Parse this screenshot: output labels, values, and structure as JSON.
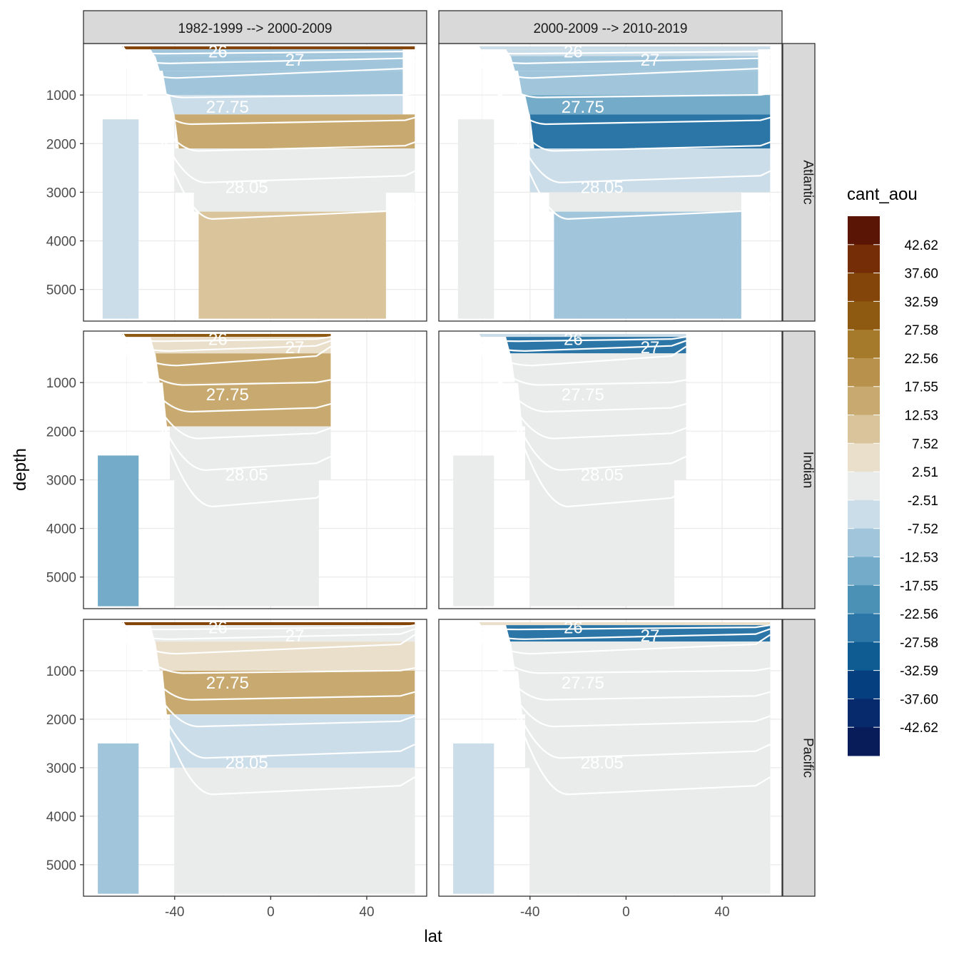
{
  "chart_data": {
    "type": "heatmap",
    "subtype": "faceted filled-contour depth sections with isopycnal contour lines",
    "xlabel": "lat",
    "ylabel": "depth",
    "xlim": [
      -75,
      62
    ],
    "ylim": [
      0,
      5650
    ],
    "y_reversed": true,
    "x_ticks": [
      -40,
      0,
      40
    ],
    "x_tick_labels": [
      "-40",
      "0",
      "40"
    ],
    "y_ticks": [
      1000,
      2000,
      3000,
      4000,
      5000
    ],
    "y_tick_labels": [
      "1000",
      "2000",
      "3000",
      "4000",
      "5000"
    ],
    "columns": [
      "1982-1999 --> 2000-2009",
      "2000-2009 --> 2010-2019"
    ],
    "rows": [
      "Atlantic",
      "Indian",
      "Pacific"
    ],
    "legend": {
      "title": "cant_aou",
      "labels": [
        "42.62",
        "37.60",
        "32.59",
        "27.58",
        "22.56",
        "17.55",
        "12.53",
        "7.52",
        "2.51",
        "-2.51",
        "-7.52",
        "-12.53",
        "-17.55",
        "-22.56",
        "-27.58",
        "-32.59",
        "-37.60",
        "-42.62"
      ],
      "colors": [
        "#5a1505",
        "#742d07",
        "#84450a",
        "#8e5a12",
        "#a67a2b",
        "#b8924c",
        "#c8aa71",
        "#d9c49b",
        "#e9dfcb",
        "#e9ecea",
        "#cadde9",
        "#a1c6dc",
        "#73abc9",
        "#4b91b5",
        "#2b76a6",
        "#0f5c93",
        "#053f80",
        "#072a6c",
        "#081c5a"
      ]
    },
    "contour_levels": [
      "26",
      "27",
      "27.75",
      "28.05"
    ],
    "facet_max_lat": {
      "Atlantic": 62,
      "Indian": 25,
      "Pacific": 60
    },
    "panels": [
      {
        "basin": "Atlantic",
        "period": "1982-1999 --> 2000-2009",
        "layers": [
          {
            "lat": [
              -62,
              60
            ],
            "depth": [
              0,
              60
            ],
            "value": 35
          },
          {
            "lat": [
              -50,
              55
            ],
            "depth": [
              60,
              200
            ],
            "value": -15
          },
          {
            "lat": [
              -48,
              55
            ],
            "depth": [
              200,
              500
            ],
            "value": -12
          },
          {
            "lat": [
              -45,
              55
            ],
            "depth": [
              500,
              1000
            ],
            "value": -14
          },
          {
            "lat": [
              -42,
              55
            ],
            "depth": [
              1000,
              1400
            ],
            "value": -8
          },
          {
            "lat": [
              -40,
              60
            ],
            "depth": [
              1400,
              2100
            ],
            "value": 15
          },
          {
            "lat": [
              -40,
              60
            ],
            "depth": [
              2100,
              3000
            ],
            "value": 0
          },
          {
            "lat": [
              -32,
              48
            ],
            "depth": [
              3000,
              3400
            ],
            "value": 0
          },
          {
            "lat": [
              -30,
              48
            ],
            "depth": [
              3400,
              5600
            ],
            "value": 10
          },
          {
            "lat": [
              -70,
              -55
            ],
            "depth": [
              1500,
              5600
            ],
            "value": -10
          }
        ]
      },
      {
        "basin": "Atlantic",
        "period": "2000-2009 --> 2010-2019",
        "layers": [
          {
            "lat": [
              -62,
              60
            ],
            "depth": [
              0,
              60
            ],
            "value": -8
          },
          {
            "lat": [
              -50,
              55
            ],
            "depth": [
              60,
              200
            ],
            "value": -10
          },
          {
            "lat": [
              -48,
              55
            ],
            "depth": [
              200,
              500
            ],
            "value": -12
          },
          {
            "lat": [
              -45,
              55
            ],
            "depth": [
              500,
              1000
            ],
            "value": -15
          },
          {
            "lat": [
              -42,
              60
            ],
            "depth": [
              1000,
              1400
            ],
            "value": -20
          },
          {
            "lat": [
              -40,
              60
            ],
            "depth": [
              1400,
              2100
            ],
            "value": -30
          },
          {
            "lat": [
              -40,
              60
            ],
            "depth": [
              2100,
              3000
            ],
            "value": -7
          },
          {
            "lat": [
              -32,
              48
            ],
            "depth": [
              3000,
              3400
            ],
            "value": -5
          },
          {
            "lat": [
              -30,
              48
            ],
            "depth": [
              3400,
              5600
            ],
            "value": -15
          },
          {
            "lat": [
              -70,
              -55
            ],
            "depth": [
              1500,
              5600
            ],
            "value": 0
          }
        ]
      },
      {
        "basin": "Indian",
        "period": "1982-1999 --> 2000-2009",
        "layers": [
          {
            "lat": [
              -62,
              25
            ],
            "depth": [
              0,
              60
            ],
            "value": 30
          },
          {
            "lat": [
              -50,
              25
            ],
            "depth": [
              60,
              400
            ],
            "value": 5
          },
          {
            "lat": [
              -48,
              25
            ],
            "depth": [
              400,
              1000
            ],
            "value": 12
          },
          {
            "lat": [
              -45,
              25
            ],
            "depth": [
              1000,
              1900
            ],
            "value": 15
          },
          {
            "lat": [
              -42,
              25
            ],
            "depth": [
              1900,
              3000
            ],
            "value": -5
          },
          {
            "lat": [
              -40,
              20
            ],
            "depth": [
              3000,
              5600
            ],
            "value": -5
          },
          {
            "lat": [
              -72,
              -55
            ],
            "depth": [
              2500,
              5600
            ],
            "value": -18
          }
        ]
      },
      {
        "basin": "Indian",
        "period": "2000-2009 --> 2010-2019",
        "layers": [
          {
            "lat": [
              -62,
              25
            ],
            "depth": [
              0,
              60
            ],
            "value": -10
          },
          {
            "lat": [
              -50,
              25
            ],
            "depth": [
              60,
              400
            ],
            "value": -30
          },
          {
            "lat": [
              -48,
              25
            ],
            "depth": [
              400,
              1000
            ],
            "value": 0
          },
          {
            "lat": [
              -45,
              25
            ],
            "depth": [
              1000,
              1900
            ],
            "value": -4
          },
          {
            "lat": [
              -42,
              25
            ],
            "depth": [
              1900,
              3000
            ],
            "value": -5
          },
          {
            "lat": [
              -40,
              20
            ],
            "depth": [
              3000,
              5600
            ],
            "value": -5
          },
          {
            "lat": [
              -72,
              -55
            ],
            "depth": [
              2500,
              5600
            ],
            "value": 0
          }
        ]
      },
      {
        "basin": "Pacific",
        "period": "1982-1999 --> 2000-2009",
        "layers": [
          {
            "lat": [
              -62,
              60
            ],
            "depth": [
              0,
              60
            ],
            "value": 35
          },
          {
            "lat": [
              -50,
              60
            ],
            "depth": [
              60,
              400
            ],
            "value": 0
          },
          {
            "lat": [
              -48,
              60
            ],
            "depth": [
              400,
              1000
            ],
            "value": 5
          },
          {
            "lat": [
              -45,
              60
            ],
            "depth": [
              1000,
              1900
            ],
            "value": 12
          },
          {
            "lat": [
              -42,
              60
            ],
            "depth": [
              1900,
              3000
            ],
            "value": -8
          },
          {
            "lat": [
              -40,
              60
            ],
            "depth": [
              3000,
              5600
            ],
            "value": 0
          },
          {
            "lat": [
              -72,
              -55
            ],
            "depth": [
              2500,
              5600
            ],
            "value": -15
          }
        ]
      },
      {
        "basin": "Pacific",
        "period": "2000-2009 --> 2010-2019",
        "layers": [
          {
            "lat": [
              -62,
              60
            ],
            "depth": [
              0,
              60
            ],
            "value": 5
          },
          {
            "lat": [
              -50,
              60
            ],
            "depth": [
              60,
              400
            ],
            "value": -30
          },
          {
            "lat": [
              -48,
              60
            ],
            "depth": [
              400,
              1000
            ],
            "value": -5
          },
          {
            "lat": [
              -45,
              60
            ],
            "depth": [
              1000,
              1900
            ],
            "value": 0
          },
          {
            "lat": [
              -42,
              60
            ],
            "depth": [
              1900,
              3000
            ],
            "value": -5
          },
          {
            "lat": [
              -40,
              60
            ],
            "depth": [
              3000,
              5600
            ],
            "value": -5
          },
          {
            "lat": [
              -72,
              -55
            ],
            "depth": [
              2500,
              5600
            ],
            "value": -10
          }
        ]
      }
    ]
  }
}
